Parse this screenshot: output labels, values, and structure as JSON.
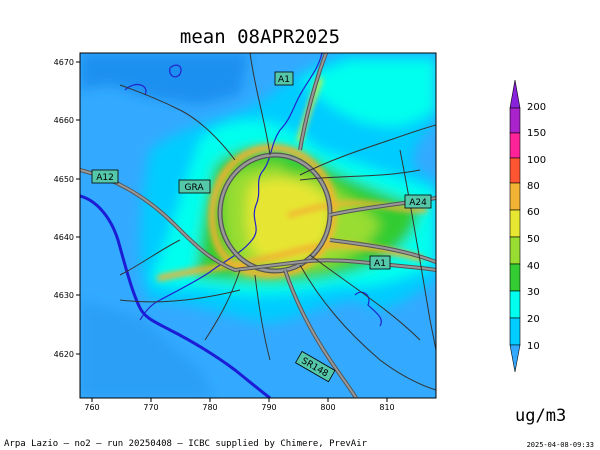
{
  "title": "mean 08APR2025",
  "unit": "ug/m3",
  "footer_left": "Arpa Lazio — no2 — run 20250408 — ICBC supplied by Chimere, PrevAir",
  "footer_right": "2025-04-08-09:33",
  "map": {
    "x_ticks": [
      "760",
      "770",
      "780",
      "790",
      "800",
      "810"
    ],
    "y_ticks": [
      "4670",
      "4660",
      "4650",
      "4640",
      "4630",
      "4620"
    ],
    "road_labels": [
      "A1",
      "A12",
      "GRA",
      "A24",
      "A1",
      "SR148"
    ]
  },
  "legend": {
    "levels": [
      "10",
      "20",
      "30",
      "40",
      "50",
      "60",
      "80",
      "100",
      "150",
      "200"
    ],
    "colors": [
      "#33aaff",
      "#00ccff",
      "#00ffee",
      "#33cc33",
      "#99dd33",
      "#e6e633",
      "#f2b233",
      "#ff5533",
      "#ff2299",
      "#aa22cc",
      "#8822dd"
    ]
  }
}
